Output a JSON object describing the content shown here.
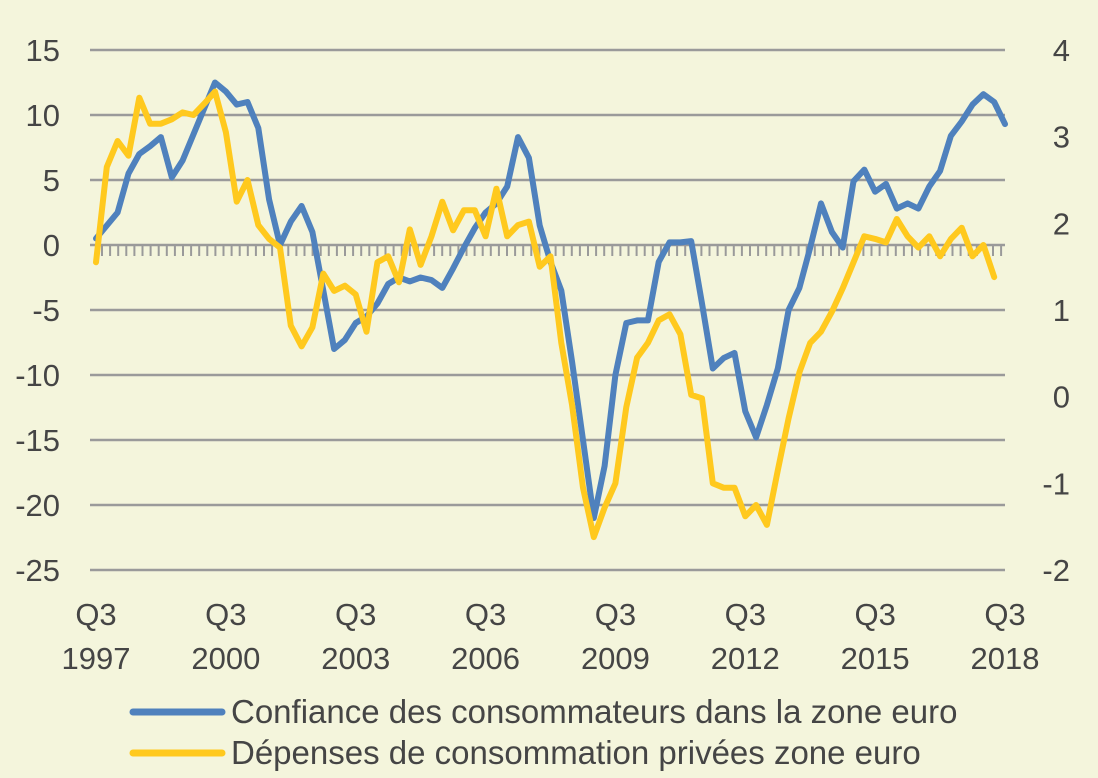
{
  "chart_data": {
    "type": "line",
    "title": "",
    "xlabel": "",
    "ylabel": "",
    "x_ticks": [
      {
        "q": "Q3",
        "year": "1997",
        "x": 0
      },
      {
        "q": "Q3",
        "year": "2000",
        "x": 12
      },
      {
        "q": "Q3",
        "year": "2003",
        "x": 24
      },
      {
        "q": "Q3",
        "year": "2006",
        "x": 36
      },
      {
        "q": "Q3",
        "year": "2009",
        "x": 48
      },
      {
        "q": "Q3",
        "year": "2012",
        "x": 60
      },
      {
        "q": "Q3",
        "year": "2015",
        "x": 72
      },
      {
        "q": "Q3",
        "year": "2018",
        "x": 84
      }
    ],
    "x_range": [
      0,
      84
    ],
    "y_left": {
      "ticks": [
        "15",
        "10",
        "5",
        "0",
        "-5",
        "-10",
        "-15",
        "-20",
        "-25"
      ],
      "range": [
        -25,
        15
      ]
    },
    "y_right": {
      "ticks": [
        "4",
        "3",
        "2",
        "1",
        "0",
        "-1",
        "-2"
      ],
      "range": [
        -2,
        4
      ]
    },
    "grid": true,
    "legend_position": "bottom",
    "series": [
      {
        "name": "Confiance des consommateurs dans la zone euro",
        "axis": "left",
        "color": "#4f81bd",
        "values": [
          0.5,
          1.5,
          2.5,
          5.5,
          7,
          7.6,
          8.3,
          5.2,
          6.5,
          8.5,
          10.5,
          12.5,
          11.8,
          10.8,
          11,
          9,
          3.5,
          0,
          1.8,
          3,
          1,
          -3.5,
          -8,
          -7.3,
          -6,
          -5.5,
          -4.5,
          -3,
          -2.5,
          -2.8,
          -2.5,
          -2.7,
          -3.3,
          -1.8,
          -0.2,
          1.3,
          2.5,
          3.2,
          4.5,
          8.3,
          6.7,
          1.5,
          -1.3,
          -3.5,
          -9,
          -15,
          -21,
          -17,
          -10,
          -6,
          -5.8,
          -5.8,
          -1.3,
          0.2,
          0.2,
          0.3,
          -4.5,
          -9.5,
          -8.7,
          -8.3,
          -12.8,
          -14.8,
          -12.3,
          -9.5,
          -5,
          -3.3,
          -0.2,
          3.2,
          1,
          -0.2,
          4.9,
          5.8,
          4.1,
          4.7,
          2.8,
          3.2,
          2.8,
          4.5,
          5.7,
          8.4,
          9.5,
          10.8,
          11.6,
          11,
          9.3
        ]
      },
      {
        "name": "Dépenses de consommation privées zone euro",
        "axis": "right",
        "color": "#ffc91e",
        "values": [
          1.55,
          2.65,
          2.95,
          2.78,
          3.45,
          3.15,
          3.15,
          3.2,
          3.28,
          3.25,
          3.38,
          3.52,
          3.05,
          2.25,
          2.5,
          1.98,
          1.82,
          1.72,
          0.82,
          0.58,
          0.8,
          1.42,
          1.22,
          1.28,
          1.18,
          0.75,
          1.55,
          1.62,
          1.32,
          1.93,
          1.52,
          1.85,
          2.25,
          1.92,
          2.15,
          2.15,
          1.85,
          2.4,
          1.85,
          1.98,
          2.02,
          1.5,
          1.62,
          0.62,
          -0.1,
          -1.05,
          -1.62,
          -1.28,
          -1.0,
          -0.12,
          0.45,
          0.62,
          0.88,
          0.95,
          0.72,
          0.02,
          -0.02,
          -1.0,
          -1.05,
          -1.05,
          -1.38,
          -1.25,
          -1.48,
          -0.85,
          -0.25,
          0.28,
          0.62,
          0.75,
          0.98,
          1.25,
          1.55,
          1.85,
          1.82,
          1.78,
          2.05,
          1.85,
          1.72,
          1.85,
          1.62,
          1.82,
          1.95,
          1.62,
          1.75,
          1.38
        ]
      }
    ]
  }
}
